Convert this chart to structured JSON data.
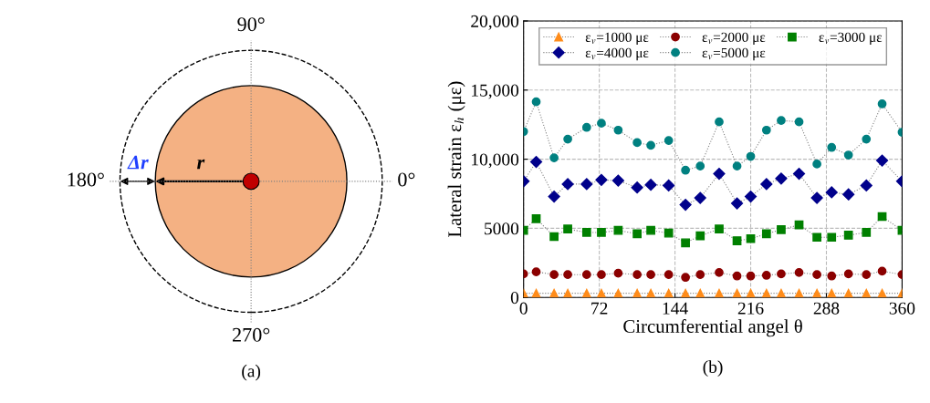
{
  "chart_data": [
    {
      "type": "other",
      "title": "(a)",
      "annotations": [
        "90°",
        "180°",
        "0°",
        "270°",
        "Δr",
        "r"
      ]
    },
    {
      "type": "line",
      "title": "(b)",
      "xlabel": "Circumferential angel θ",
      "ylabel": "Lateral strain ε$_{h}$ (με)",
      "x": [
        0,
        12,
        29,
        42,
        60,
        74,
        90,
        108,
        121,
        138,
        154,
        168,
        186,
        203,
        216,
        231,
        245,
        262,
        279,
        293,
        309,
        326,
        341,
        360
      ],
      "xlim": [
        0,
        360
      ],
      "xticks": [
        0,
        72,
        144,
        216,
        288,
        360
      ],
      "ylim": [
        0,
        20000
      ],
      "yticks": [
        0,
        5000,
        {
          "value": 10000,
          "label": "10,000"
        },
        {
          "value": 15000,
          "label": "15,000"
        },
        {
          "value": 20000,
          "label": "20,000"
        }
      ],
      "grid": true,
      "legend": "top",
      "line_style": "dotted",
      "series": [
        {
          "name": "ε$_{v}$=1000 με",
          "color": "#ff8c1a",
          "marker": "triangle",
          "values": [
            300,
            300,
            300,
            300,
            300,
            300,
            300,
            300,
            300,
            300,
            300,
            300,
            300,
            300,
            300,
            300,
            300,
            300,
            300,
            300,
            300,
            300,
            300,
            300
          ]
        },
        {
          "name": "ε$_{v}$=2000 με",
          "color": "#8b0000",
          "marker": "circle",
          "values": [
            1700,
            1850,
            1650,
            1650,
            1650,
            1650,
            1750,
            1650,
            1650,
            1650,
            1450,
            1650,
            1800,
            1550,
            1550,
            1600,
            1700,
            1800,
            1650,
            1550,
            1700,
            1650,
            1900,
            1650
          ]
        },
        {
          "name": "ε$_{v}$=3000 με",
          "color": "#008000",
          "marker": "square",
          "values": [
            4850,
            5700,
            4400,
            4950,
            4700,
            4700,
            4850,
            4600,
            4850,
            4650,
            3950,
            4450,
            4950,
            4100,
            4250,
            4600,
            4900,
            5250,
            4350,
            4350,
            4500,
            4700,
            5850,
            4850
          ]
        },
        {
          "name": "ε$_{v}$=4000 με",
          "color": "#00008b",
          "marker": "diamond",
          "values": [
            8400,
            9800,
            7300,
            8200,
            8200,
            8500,
            8450,
            7950,
            8150,
            8100,
            6700,
            7200,
            8950,
            6800,
            7300,
            8200,
            8600,
            8950,
            7200,
            7600,
            7450,
            8100,
            9900,
            8400
          ]
        },
        {
          "name": "ε$_{v}$=5000 με",
          "color": "#008080",
          "marker": "circle",
          "values": [
            12000,
            14150,
            10100,
            11450,
            12300,
            12600,
            12100,
            11200,
            11000,
            11350,
            9200,
            9500,
            12700,
            9500,
            10200,
            12100,
            12800,
            12700,
            9650,
            10850,
            10300,
            11450,
            14000,
            11950
          ]
        }
      ]
    }
  ]
}
